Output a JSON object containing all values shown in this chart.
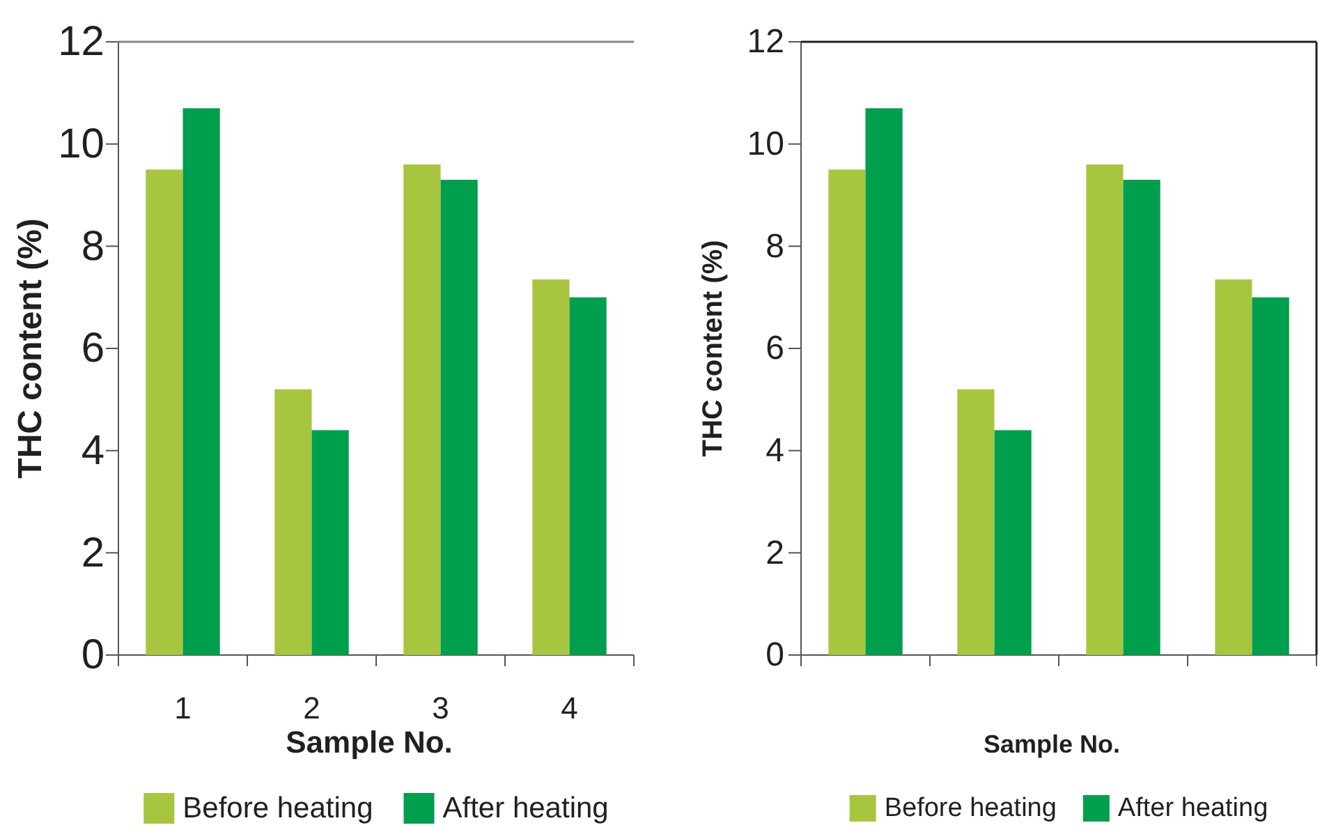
{
  "chart_data": [
    {
      "type": "bar",
      "xlabel": "Sample No.",
      "ylabel": "THC content (%)",
      "categories": [
        "1",
        "2",
        "3",
        "4"
      ],
      "ylim": [
        0,
        12
      ],
      "yticks": [
        0,
        2,
        4,
        6,
        8,
        10,
        12
      ],
      "legend": "bottom",
      "grid": false,
      "series": [
        {
          "name": "Before heating",
          "color": "#a8c540",
          "values": [
            9.5,
            5.2,
            9.6,
            7.35
          ]
        },
        {
          "name": "After heating",
          "color": "#009f4d",
          "values": [
            10.7,
            4.4,
            9.3,
            7.0
          ]
        }
      ]
    },
    {
      "type": "bar",
      "xlabel": "Sample No.",
      "ylabel": "THC content (%)",
      "categories": [
        null,
        null,
        null,
        null
      ],
      "ylim": [
        0,
        12
      ],
      "yticks": [
        0,
        2,
        4,
        6,
        8,
        10,
        12
      ],
      "legend": "bottom",
      "grid": false,
      "series": [
        {
          "name": "Before heating",
          "color": "#a8c540",
          "values": [
            9.5,
            5.2,
            9.6,
            7.35
          ]
        },
        {
          "name": "After heating",
          "color": "#009f4d",
          "values": [
            10.7,
            4.4,
            9.3,
            7.0
          ]
        }
      ]
    }
  ]
}
